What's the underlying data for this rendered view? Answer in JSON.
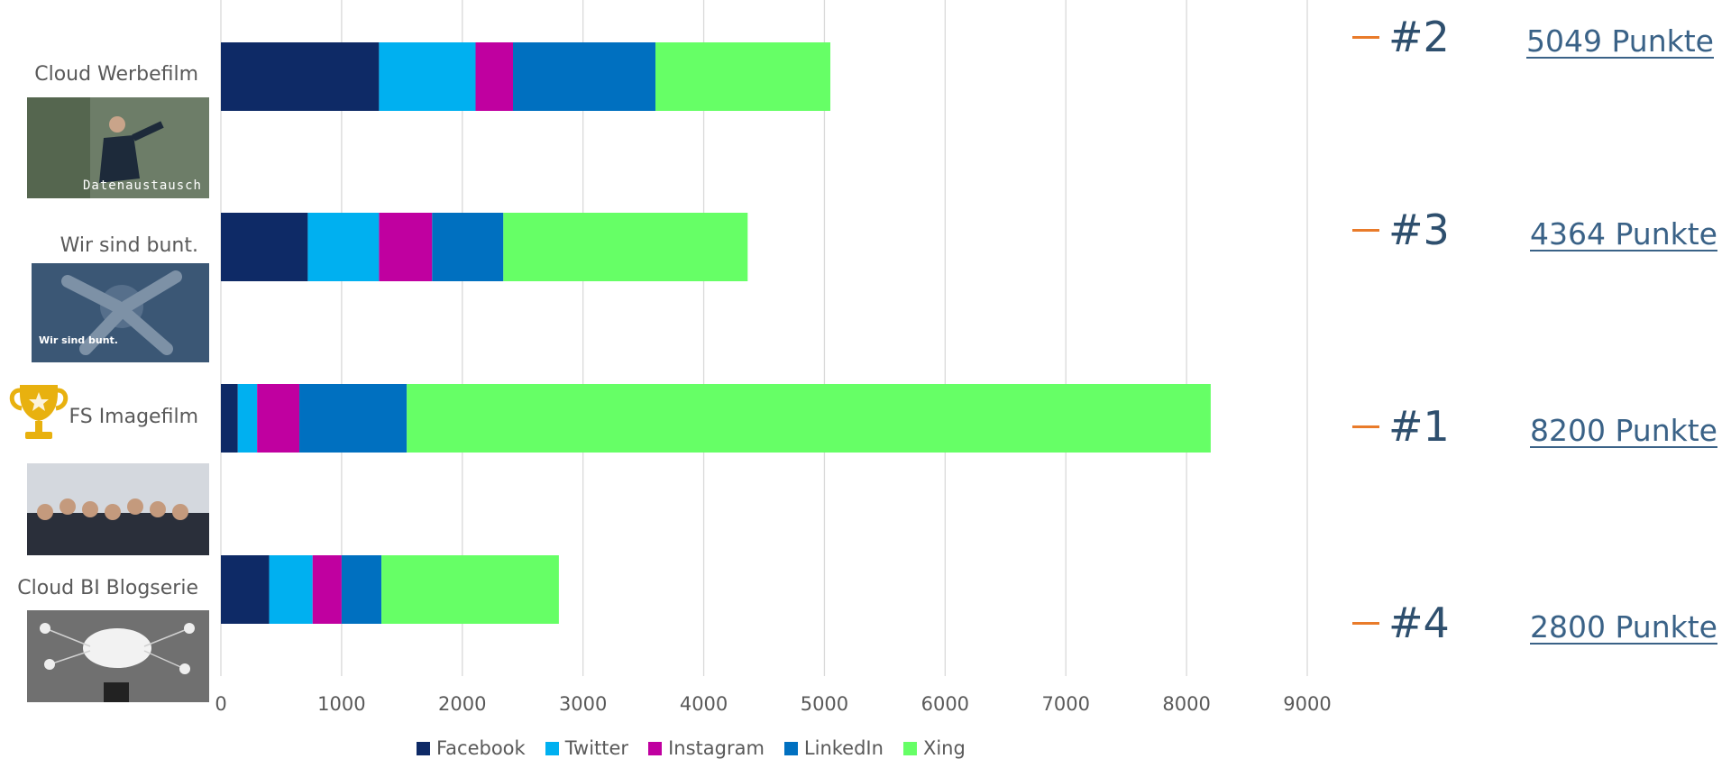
{
  "chart_data": {
    "type": "bar",
    "orientation": "horizontal",
    "stacked": true,
    "categories": [
      "Cloud Werbefilm",
      "Wir sind bunt.",
      "FS Imagefilm",
      "Cloud BI Blogserie"
    ],
    "series": [
      {
        "name": "Facebook",
        "color": "#0e2a66",
        "values": [
          1310,
          720,
          140,
          400
        ]
      },
      {
        "name": "Twitter",
        "color": "#00b0f0",
        "values": [
          800,
          590,
          160,
          360
        ]
      },
      {
        "name": "Instagram",
        "color": "#c000a0",
        "values": [
          310,
          440,
          350,
          240
        ]
      },
      {
        "name": "LinkedIn",
        "color": "#0070c0",
        "values": [
          1180,
          590,
          890,
          330
        ]
      },
      {
        "name": "Xing",
        "color": "#66ff66",
        "values": [
          1449,
          2024,
          6660,
          1470
        ]
      }
    ],
    "xlim": [
      0,
      9000
    ],
    "xticks": [
      "0",
      "1000",
      "2000",
      "3000",
      "4000",
      "5000",
      "6000",
      "7000",
      "8000",
      "9000"
    ],
    "grid": true,
    "legend_position": "bottom",
    "title": "",
    "xlabel": "",
    "ylabel": ""
  },
  "thumbnails": [
    {
      "caption": "Datenaustausch",
      "icon": "person-running-photo",
      "bg": "#5f6e5c"
    },
    {
      "caption": "Wir sind bunt.",
      "icon": "hands-together-photo",
      "bg": "#3b5775"
    },
    {
      "caption": "",
      "icon": "team-thumbs-up-photo",
      "bg": "#c9ccd3"
    },
    {
      "caption": "",
      "icon": "cloud-network-photo",
      "bg": "#6e6e6e"
    }
  ],
  "rankings": [
    {
      "rank": "#2",
      "points": "5049 Punkte"
    },
    {
      "rank": "#3",
      "points": "4364 Punkte"
    },
    {
      "rank": "#1",
      "points": "8200 Punkte"
    },
    {
      "rank": "#4",
      "points": "2800 Punkte"
    }
  ],
  "winner_icon": "trophy-icon",
  "colors": {
    "accent_dash": "#e97b2a",
    "rank_text": "#2e4f6e",
    "points_link": "#3a6287",
    "trophy": "#e8b10f"
  }
}
